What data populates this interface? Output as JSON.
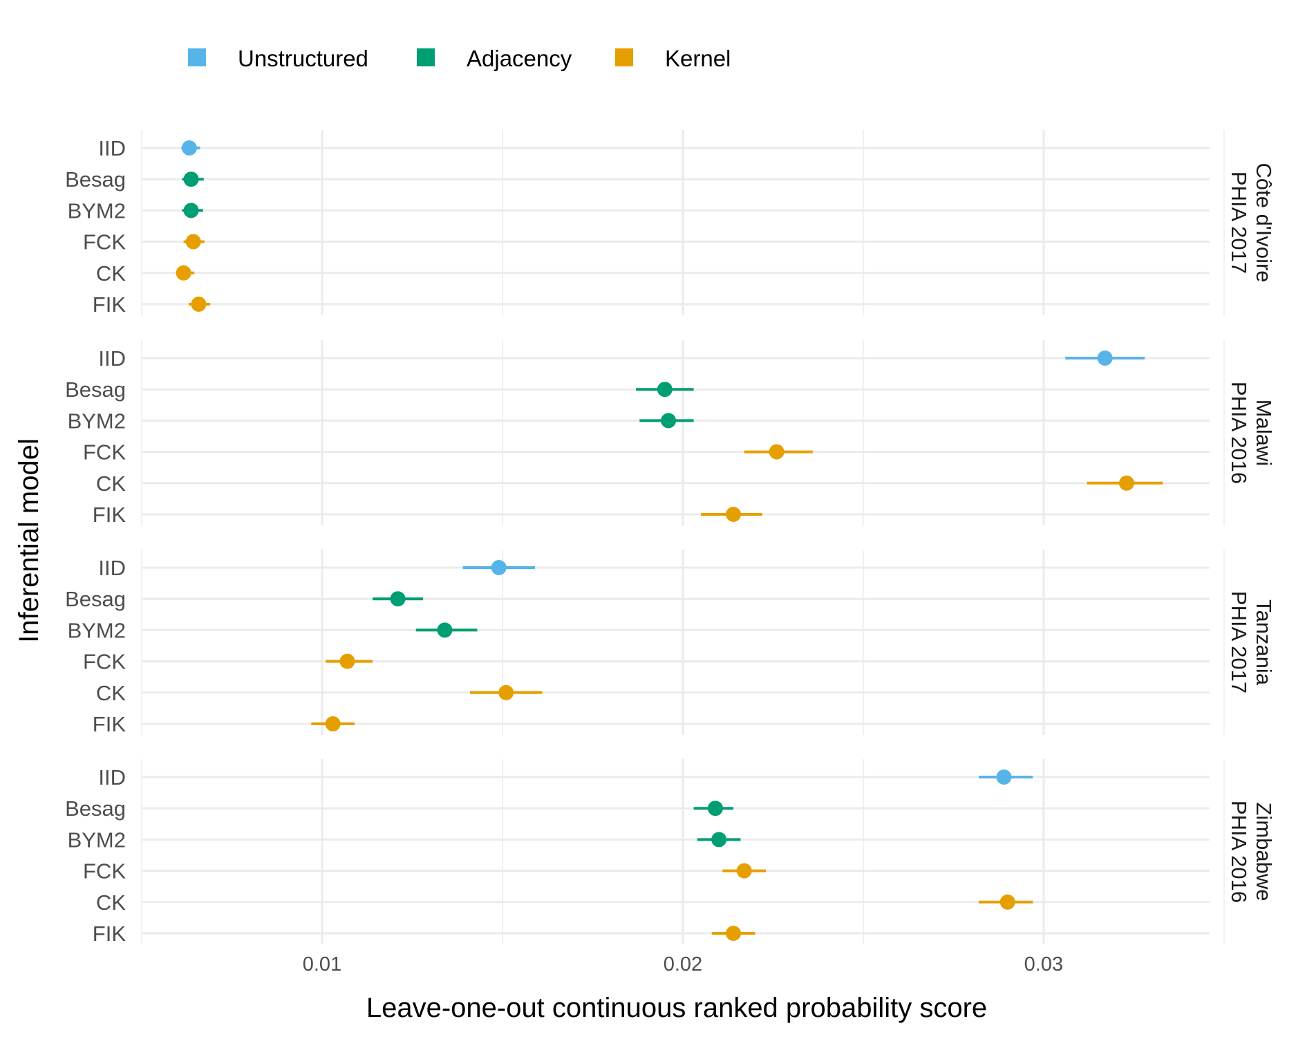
{
  "chart_data": {
    "type": "scatter",
    "subtype": "point-range (dot with interval), faceted",
    "xlabel": "Leave-one-out continuous ranked probability score",
    "ylabel": "Inferential model",
    "x_ticks": [
      0.01,
      0.02,
      0.03
    ],
    "x_tick_labels": [
      "0.01",
      "0.02",
      "0.03"
    ],
    "xlim": [
      0.005,
      0.0346
    ],
    "grid": true,
    "legend_position": "top-left",
    "legend": [
      {
        "name": "Unstructured",
        "color": "#56B4E9"
      },
      {
        "name": "Adjacency",
        "color": "#009E73"
      },
      {
        "name": "Kernel",
        "color": "#E69F00"
      }
    ],
    "models": [
      "IID",
      "Besag",
      "BYM2",
      "FCK",
      "CK",
      "FIK"
    ],
    "model_group": {
      "IID": "Unstructured",
      "Besag": "Adjacency",
      "BYM2": "Adjacency",
      "FCK": "Kernel",
      "CK": "Kernel",
      "FIK": "Kernel"
    },
    "facets": [
      {
        "label_line1": "Côte d'Ivoire",
        "label_line2": "PHIA 2017",
        "points": [
          {
            "model": "IID",
            "value": 0.00632,
            "lower": 0.0061,
            "upper": 0.00662
          },
          {
            "model": "Besag",
            "value": 0.00637,
            "lower": 0.00612,
            "upper": 0.00672
          },
          {
            "model": "BYM2",
            "value": 0.00637,
            "lower": 0.00612,
            "upper": 0.0067
          },
          {
            "model": "FCK",
            "value": 0.00643,
            "lower": 0.00616,
            "upper": 0.00674
          },
          {
            "model": "CK",
            "value": 0.00616,
            "lower": 0.00598,
            "upper": 0.00646
          },
          {
            "model": "FIK",
            "value": 0.00658,
            "lower": 0.0063,
            "upper": 0.0069
          }
        ]
      },
      {
        "label_line1": "Malawi",
        "label_line2": "PHIA 2016",
        "points": [
          {
            "model": "IID",
            "value": 0.0317,
            "lower": 0.0306,
            "upper": 0.0328
          },
          {
            "model": "Besag",
            "value": 0.0195,
            "lower": 0.0187,
            "upper": 0.0203
          },
          {
            "model": "BYM2",
            "value": 0.0196,
            "lower": 0.0188,
            "upper": 0.0203
          },
          {
            "model": "FCK",
            "value": 0.0226,
            "lower": 0.0217,
            "upper": 0.0236
          },
          {
            "model": "CK",
            "value": 0.0323,
            "lower": 0.0312,
            "upper": 0.0333
          },
          {
            "model": "FIK",
            "value": 0.0214,
            "lower": 0.0205,
            "upper": 0.0222
          }
        ]
      },
      {
        "label_line1": "Tanzania",
        "label_line2": "PHIA 2017",
        "points": [
          {
            "model": "IID",
            "value": 0.0149,
            "lower": 0.0139,
            "upper": 0.0159
          },
          {
            "model": "Besag",
            "value": 0.0121,
            "lower": 0.0114,
            "upper": 0.0128
          },
          {
            "model": "BYM2",
            "value": 0.0134,
            "lower": 0.0126,
            "upper": 0.0143
          },
          {
            "model": "FCK",
            "value": 0.0107,
            "lower": 0.0101,
            "upper": 0.0114
          },
          {
            "model": "CK",
            "value": 0.0151,
            "lower": 0.0141,
            "upper": 0.0161
          },
          {
            "model": "FIK",
            "value": 0.0103,
            "lower": 0.0097,
            "upper": 0.0109
          }
        ]
      },
      {
        "label_line1": "Zimbabwe",
        "label_line2": "PHIA 2016",
        "points": [
          {
            "model": "IID",
            "value": 0.0289,
            "lower": 0.0282,
            "upper": 0.0297
          },
          {
            "model": "Besag",
            "value": 0.0209,
            "lower": 0.0203,
            "upper": 0.0214
          },
          {
            "model": "BYM2",
            "value": 0.021,
            "lower": 0.0204,
            "upper": 0.0216
          },
          {
            "model": "FCK",
            "value": 0.0217,
            "lower": 0.0211,
            "upper": 0.0223
          },
          {
            "model": "CK",
            "value": 0.029,
            "lower": 0.0282,
            "upper": 0.0297
          },
          {
            "model": "FIK",
            "value": 0.0214,
            "lower": 0.0208,
            "upper": 0.022
          }
        ]
      }
    ]
  }
}
